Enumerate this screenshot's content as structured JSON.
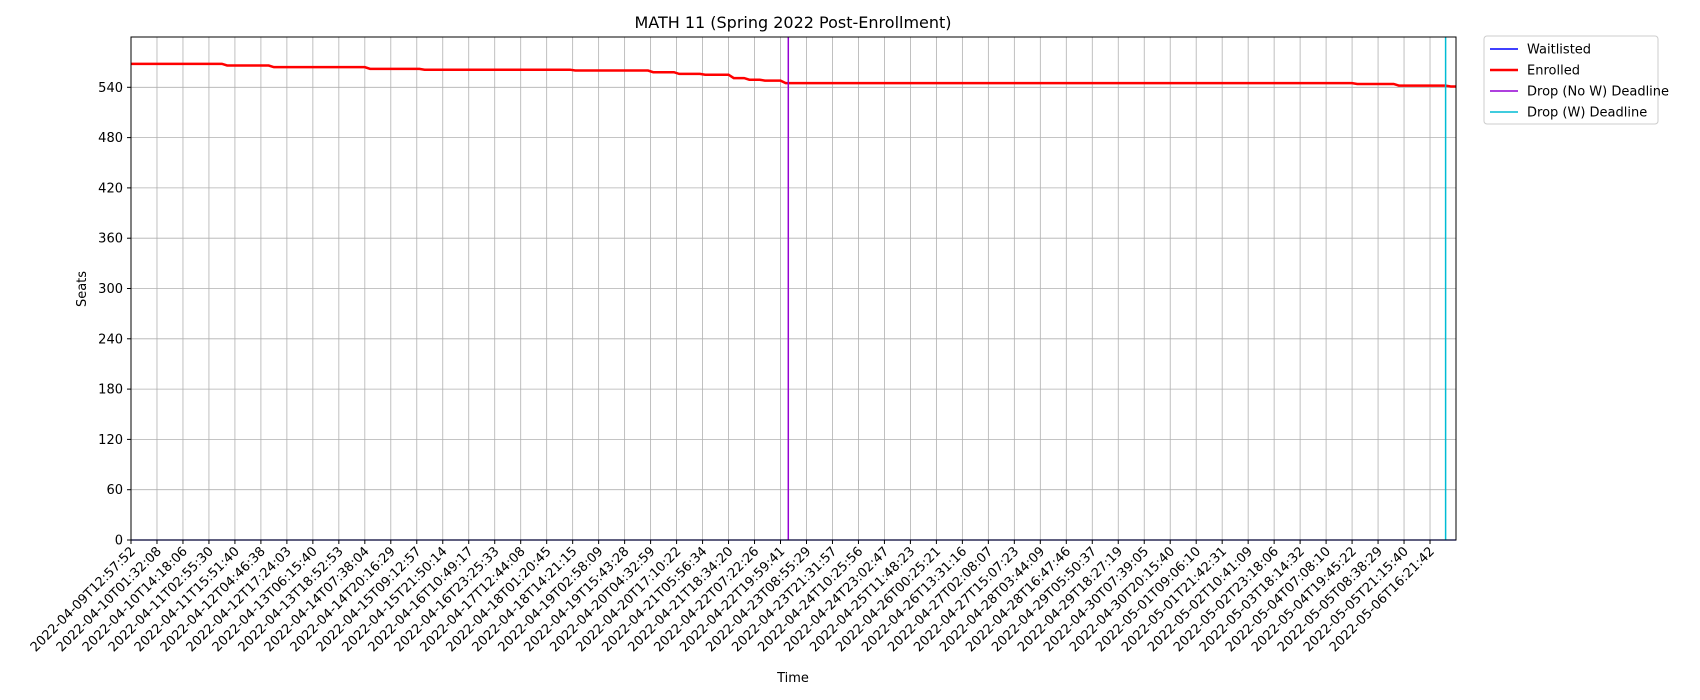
{
  "chart_data": {
    "type": "line",
    "title": "MATH 11 (Spring 2022 Post-Enrollment)",
    "xlabel": "Time",
    "ylabel": "Seats",
    "ylim": [
      0,
      600
    ],
    "yticks": [
      0,
      60,
      120,
      180,
      240,
      300,
      360,
      420,
      480,
      540
    ],
    "x_tick_labels": [
      "2022-04-09T12:57:52",
      "2022-04-10T01:32:08",
      "2022-04-10T14:18:06",
      "2022-04-11T02:55:30",
      "2022-04-11T15:51:40",
      "2022-04-12T04:46:38",
      "2022-04-12T17:24:03",
      "2022-04-13T06:15:40",
      "2022-04-13T18:52:53",
      "2022-04-14T07:38:04",
      "2022-04-14T20:16:29",
      "2022-04-15T09:12:57",
      "2022-04-15T21:50:14",
      "2022-04-16T10:49:17",
      "2022-04-16T23:25:33",
      "2022-04-17T12:44:08",
      "2022-04-18T01:20:45",
      "2022-04-18T14:21:15",
      "2022-04-19T02:58:09",
      "2022-04-19T15:43:28",
      "2022-04-20T04:32:59",
      "2022-04-20T17:10:22",
      "2022-04-21T05:56:34",
      "2022-04-21T18:34:20",
      "2022-04-22T07:22:26",
      "2022-04-22T19:59:41",
      "2022-04-23T08:55:29",
      "2022-04-23T21:31:57",
      "2022-04-24T10:25:56",
      "2022-04-24T23:02:47",
      "2022-04-25T11:48:23",
      "2022-04-26T00:25:21",
      "2022-04-26T13:31:16",
      "2022-04-27T02:08:07",
      "2022-04-27T15:07:23",
      "2022-04-28T03:44:09",
      "2022-04-28T16:47:46",
      "2022-04-29T05:50:37",
      "2022-04-29T18:27:19",
      "2022-04-30T07:39:05",
      "2022-04-30T20:15:40",
      "2022-05-01T09:06:10",
      "2022-05-01T21:42:31",
      "2022-05-02T10:41:09",
      "2022-05-02T23:18:06",
      "2022-05-03T18:14:32",
      "2022-05-04T07:08:10",
      "2022-05-04T19:45:22",
      "2022-05-05T08:38:29",
      "2022-05-05T21:15:40",
      "2022-05-06T16:21:42"
    ],
    "x_range": [
      0,
      51
    ],
    "series": [
      {
        "name": "Waitlisted",
        "color": "#0000ff",
        "x": [
          0,
          51
        ],
        "values": [
          0,
          0
        ]
      },
      {
        "name": "Enrolled",
        "color": "#ff0000",
        "x": [
          0,
          3.5,
          3.7,
          5.3,
          5.5,
          9.0,
          9.2,
          11.1,
          11.3,
          16.9,
          17.1,
          19.9,
          20.1,
          20.9,
          21.1,
          21.9,
          22.1,
          23.0,
          23.2,
          23.6,
          23.8,
          24.2,
          24.4,
          25.0,
          25.2,
          47.0,
          47.2,
          48.6,
          48.8,
          50.6,
          50.8,
          51
        ],
        "values": [
          568,
          568,
          566,
          566,
          564,
          564,
          562,
          562,
          561,
          561,
          560,
          560,
          558,
          558,
          556,
          556,
          555,
          555,
          551,
          551,
          549,
          549,
          548,
          548,
          545,
          545,
          544,
          544,
          542,
          542,
          541,
          541
        ]
      },
      {
        "name": "Drop (No W) Deadline",
        "color": "#9400d3",
        "x": [
          25.3,
          25.3
        ],
        "values": [
          0,
          600
        ]
      },
      {
        "name": "Drop (W) Deadline",
        "color": "#00bcd4",
        "x": [
          50.6,
          50.6
        ],
        "values": [
          0,
          600
        ]
      }
    ],
    "legend": [
      "Waitlisted",
      "Enrolled",
      "Drop (No W) Deadline",
      "Drop (W) Deadline"
    ],
    "legend_position": "outside-top-right",
    "grid": true
  }
}
